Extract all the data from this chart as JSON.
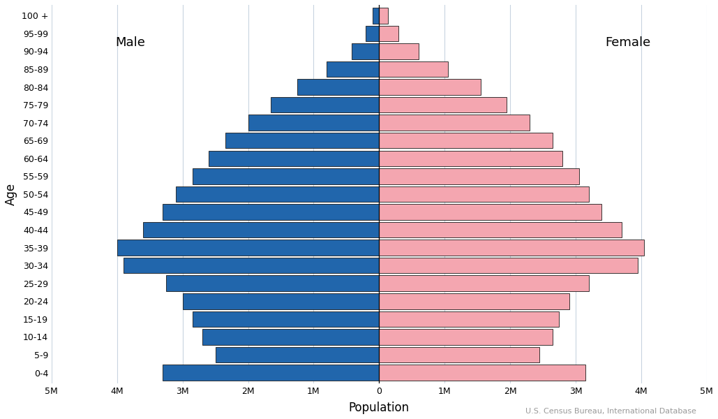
{
  "xlabel": "Population",
  "ylabel": "Age",
  "source": "U.S. Census Bureau, International Database",
  "male_label": "Male",
  "female_label": "Female",
  "age_groups_bottom_to_top": [
    "0-4",
    "5-9",
    "10-14",
    "15-19",
    "20-24",
    "25-29",
    "30-34",
    "35-39",
    "40-44",
    "45-49",
    "50-54",
    "55-59",
    "60-64",
    "65-69",
    "70-74",
    "75-79",
    "80-84",
    "85-89",
    "90-94",
    "95-99",
    "100 +"
  ],
  "male_values_bottom_to_top": [
    3.3,
    2.5,
    2.7,
    2.85,
    3.0,
    3.25,
    3.9,
    4.0,
    3.6,
    3.3,
    3.1,
    2.85,
    2.6,
    2.35,
    2.0,
    1.65,
    1.25,
    0.8,
    0.42,
    0.2,
    0.1
  ],
  "female_values_bottom_to_top": [
    3.15,
    2.45,
    2.65,
    2.75,
    2.9,
    3.2,
    3.95,
    4.05,
    3.7,
    3.4,
    3.2,
    3.05,
    2.8,
    2.65,
    2.3,
    1.95,
    1.55,
    1.05,
    0.6,
    0.3,
    0.14
  ],
  "male_color": "#2166AC",
  "female_color": "#F4A6B0",
  "bar_edge_color": "#1a1a1a",
  "background_color": "#ffffff",
  "grid_color": "#c8d4e0",
  "xlim": 5,
  "xtick_values": [
    -5,
    -4,
    -3,
    -2,
    -1,
    0,
    1,
    2,
    3,
    4,
    5
  ],
  "xtick_labels": [
    "5M",
    "4M",
    "3M",
    "2M",
    "1M",
    "0",
    "1M",
    "2M",
    "3M",
    "4M",
    "5M"
  ],
  "figsize": [
    10.29,
    6.0
  ],
  "dpi": 100
}
